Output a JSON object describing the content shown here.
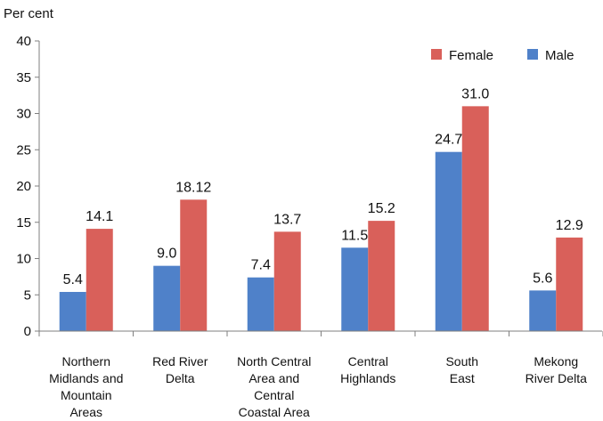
{
  "chart_data": {
    "type": "bar",
    "title": "",
    "ylabel": "Per cent",
    "xlabel": "",
    "ylim": [
      0,
      40
    ],
    "yticks": [
      0,
      5,
      10,
      15,
      20,
      25,
      30,
      35,
      40
    ],
    "grid": false,
    "legend_position": "top-right",
    "categories": [
      [
        "Northern",
        "Midlands and",
        "Mountain",
        "Areas"
      ],
      [
        "Red River",
        "Delta"
      ],
      [
        "North Central",
        "Area and",
        "Central",
        "Coastal Area"
      ],
      [
        "Central",
        "Highlands"
      ],
      [
        "South",
        "East"
      ],
      [
        "Mekong",
        "River Delta"
      ]
    ],
    "series": [
      {
        "name": "Male",
        "color": "#4f81c9",
        "values": [
          5.4,
          9.0,
          7.4,
          11.5,
          24.7,
          5.6
        ],
        "labels": [
          "5.4",
          "9.0",
          "7.4",
          "11.5",
          "24.7",
          "5.6"
        ]
      },
      {
        "name": "Female",
        "color": "#d9605a",
        "values": [
          14.1,
          18.12,
          13.7,
          15.2,
          31.0,
          12.9
        ],
        "labels": [
          "14.1",
          "18.12",
          "13.7",
          "15.2",
          "31.0",
          "12.9"
        ]
      }
    ],
    "legend_order": [
      "Female",
      "Male"
    ]
  }
}
